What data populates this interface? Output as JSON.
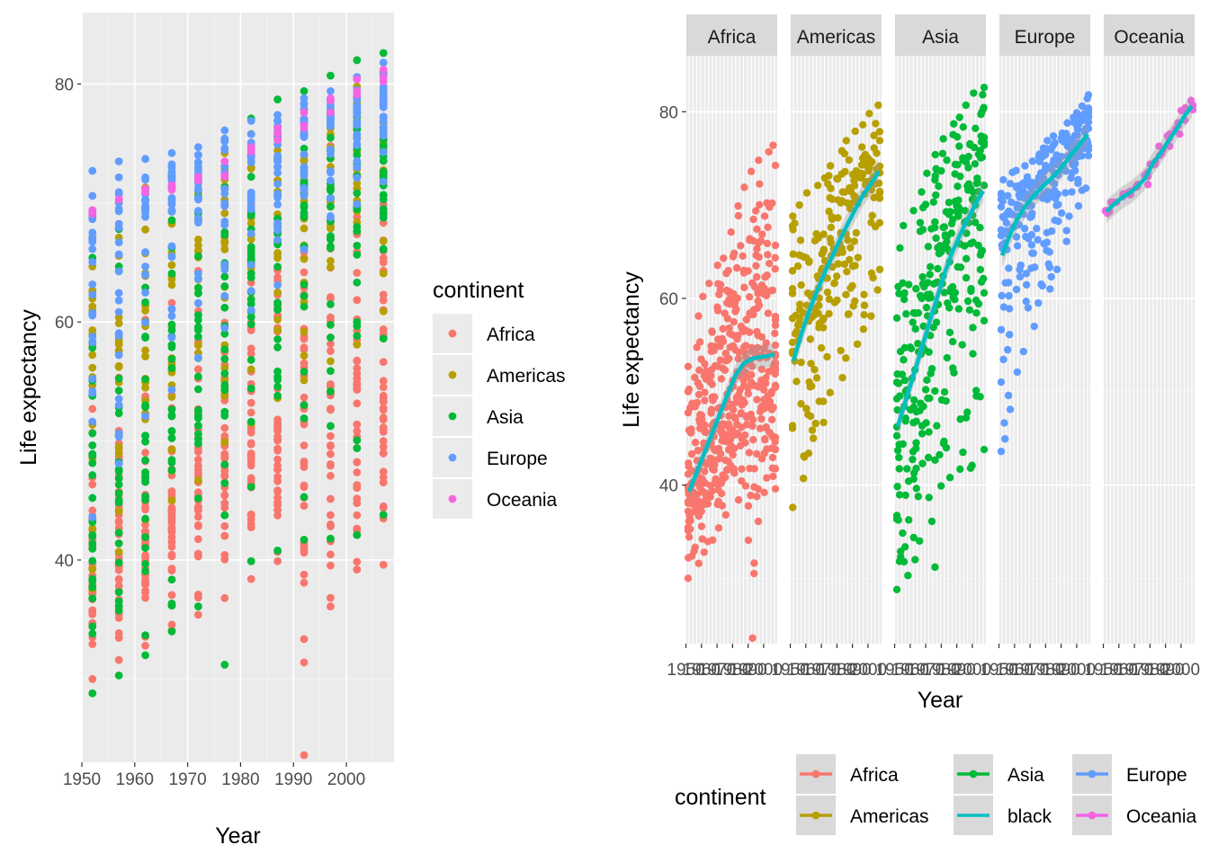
{
  "chart_data": [
    {
      "type": "scatter",
      "title": "",
      "xlabel": "Year",
      "ylabel": "Life expectancy",
      "xlim": [
        1950,
        2009
      ],
      "ylim": [
        23,
        86
      ],
      "x_ticks": [
        "1950",
        "1960",
        "1970",
        "1980",
        "1990",
        "2000"
      ],
      "y_ticks": [
        "40",
        "60",
        "80"
      ],
      "grid": true,
      "legend": {
        "title": "continent",
        "position": "right",
        "entries": [
          "Africa",
          "Americas",
          "Asia",
          "Europe",
          "Oceania"
        ]
      },
      "years": [
        1952,
        1957,
        1962,
        1967,
        1972,
        1977,
        1982,
        1987,
        1992,
        1997,
        2002,
        2007
      ],
      "series": [
        {
          "name": "Africa",
          "color": "#F8766D",
          "range_low": [
            30.0,
            31.6,
            32.8,
            34.1,
            35.4,
            36.8,
            38.4,
            39.9,
            23.6,
            36.1,
            39.2,
            39.6
          ],
          "range_high": [
            52.7,
            58.1,
            60.2,
            61.6,
            64.3,
            67.1,
            69.9,
            71.9,
            73.6,
            74.8,
            75.7,
            76.4
          ],
          "median": [
            38.8,
            40.6,
            42.6,
            44.7,
            47.0,
            49.3,
            50.8,
            51.6,
            52.4,
            52.8,
            51.2,
            52.9
          ]
        },
        {
          "name": "Americas",
          "color": "#B79F00",
          "range_low": [
            37.6,
            40.7,
            43.4,
            45.0,
            46.7,
            49.9,
            51.5,
            53.6,
            55.1,
            56.7,
            58.1,
            60.9
          ],
          "range_high": [
            68.8,
            70.0,
            71.3,
            72.1,
            72.9,
            74.2,
            75.8,
            76.9,
            77.9,
            78.6,
            79.8,
            80.7
          ],
          "median": [
            54.7,
            56.1,
            58.3,
            60.5,
            63.4,
            66.4,
            67.4,
            69.5,
            69.9,
            72.1,
            72.0,
            72.9
          ]
        },
        {
          "name": "Asia",
          "color": "#00BA38",
          "range_low": [
            28.8,
            30.3,
            32.0,
            34.0,
            36.1,
            31.2,
            39.9,
            40.8,
            41.7,
            41.8,
            42.1,
            43.8
          ],
          "range_high": [
            65.4,
            67.8,
            69.4,
            71.4,
            73.4,
            75.4,
            77.1,
            78.7,
            79.4,
            80.7,
            82.0,
            82.6
          ],
          "median": [
            44.9,
            48.3,
            49.3,
            53.7,
            56.2,
            60.8,
            63.7,
            66.3,
            68.7,
            70.3,
            71.0,
            72.4
          ]
        },
        {
          "name": "Europe",
          "color": "#619CFF",
          "range_low": [
            43.6,
            48.1,
            52.1,
            54.3,
            57.0,
            59.5,
            61.0,
            63.1,
            66.1,
            68.8,
            69.9,
            71.8
          ],
          "range_high": [
            72.7,
            73.5,
            73.7,
            74.2,
            74.7,
            76.1,
            76.9,
            77.4,
            78.8,
            79.4,
            80.6,
            81.8
          ],
          "median": [
            65.9,
            67.7,
            69.5,
            70.6,
            70.9,
            72.3,
            73.5,
            74.8,
            75.5,
            76.1,
            77.5,
            78.6
          ]
        },
        {
          "name": "Oceania",
          "color": "#F564E3",
          "range_low": [
            69.1,
            70.3,
            70.9,
            71.1,
            71.9,
            72.2,
            74.3,
            75.3,
            76.3,
            77.6,
            79.1,
            80.2
          ],
          "range_high": [
            69.4,
            70.3,
            71.2,
            71.5,
            72.2,
            73.5,
            74.7,
            76.3,
            77.6,
            78.8,
            80.4,
            81.2
          ],
          "median": [
            69.3,
            70.3,
            71.1,
            71.3,
            72.0,
            72.9,
            74.5,
            75.8,
            77.0,
            78.2,
            79.7,
            80.7
          ]
        }
      ]
    },
    {
      "type": "scatter",
      "title": "",
      "xlabel": "Year",
      "ylabel": "Life expectancy",
      "ylim": [
        23,
        86
      ],
      "y_ticks": [
        "40",
        "60",
        "80"
      ],
      "grid": true,
      "facets": [
        "Africa",
        "Americas",
        "Asia",
        "Europe",
        "Oceania"
      ],
      "facet_x_ticks": [
        "1950",
        "1960",
        "1970",
        "1980",
        "1990",
        "2000"
      ],
      "legend": {
        "title": "continent",
        "position": "bottom",
        "entries": [
          "Africa",
          "Asia",
          "Europe",
          "Americas",
          "black",
          "Oceania"
        ],
        "colors": [
          "#F8766D",
          "#00BA38",
          "#619CFF",
          "#B79F00",
          "#00BFC4",
          "#F564E3"
        ]
      },
      "smooth": [
        {
          "facet": "Africa",
          "color": "#00BFC4",
          "x": [
            1952,
            1957,
            1962,
            1967,
            1972,
            1977,
            1982,
            1987,
            1992,
            1997,
            2002,
            2007
          ],
          "y": [
            39.3,
            41.4,
            43.5,
            45.6,
            47.7,
            49.8,
            51.8,
            53.0,
            53.5,
            53.7,
            53.8,
            54.0
          ]
        },
        {
          "facet": "Americas",
          "color": "#00BFC4",
          "x": [
            1952,
            1957,
            1962,
            1967,
            1972,
            1977,
            1982,
            1987,
            1992,
            1997,
            2002,
            2007
          ],
          "y": [
            53.3,
            56.1,
            58.6,
            60.7,
            62.7,
            64.5,
            66.3,
            68.0,
            69.6,
            71.1,
            72.3,
            73.6
          ]
        },
        {
          "facet": "Asia",
          "color": "#00BFC4",
          "x": [
            1952,
            1957,
            1962,
            1967,
            1972,
            1977,
            1982,
            1987,
            1992,
            1997,
            2002,
            2007
          ],
          "y": [
            46.3,
            49.0,
            51.7,
            54.4,
            57.2,
            59.9,
            62.6,
            64.9,
            66.8,
            68.5,
            70.1,
            71.5
          ]
        },
        {
          "facet": "Europe",
          "color": "#00BFC4",
          "x": [
            1952,
            1957,
            1962,
            1967,
            1972,
            1977,
            1982,
            1987,
            1992,
            1997,
            2002,
            2007
          ],
          "y": [
            64.6,
            66.8,
            68.6,
            69.9,
            70.9,
            71.8,
            72.6,
            73.4,
            74.4,
            75.5,
            76.5,
            77.6
          ]
        },
        {
          "facet": "Oceania",
          "color": "#00BFC4",
          "x": [
            1952,
            1957,
            1962,
            1967,
            1972,
            1977,
            1982,
            1987,
            1992,
            1997,
            2002,
            2007
          ],
          "y": [
            69.3,
            70.1,
            70.8,
            71.3,
            72.0,
            72.9,
            74.5,
            75.6,
            76.9,
            78.1,
            79.5,
            80.6
          ]
        }
      ]
    }
  ]
}
